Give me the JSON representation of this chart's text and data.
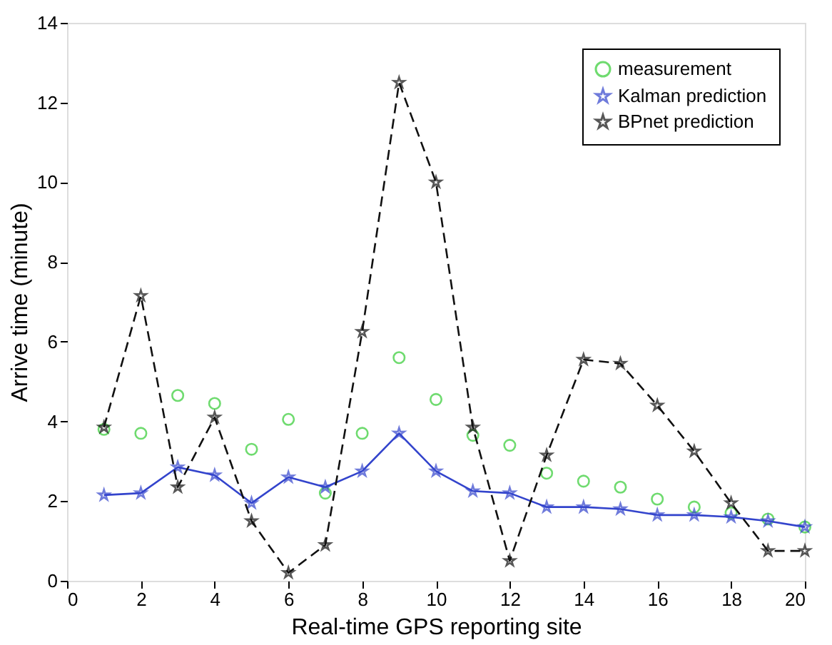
{
  "chart_data": {
    "type": "line",
    "xlabel": "Real-time GPS reporting site",
    "ylabel": "Arrive time (minute)",
    "x": [
      1,
      2,
      3,
      4,
      5,
      6,
      7,
      8,
      9,
      10,
      11,
      12,
      13,
      14,
      15,
      16,
      17,
      18,
      19,
      20
    ],
    "series": [
      {
        "name": "measurement",
        "type": "scatter",
        "color": "#33cc33",
        "marker": "circle",
        "values": [
          3.8,
          3.7,
          4.65,
          4.45,
          3.3,
          4.05,
          2.2,
          3.7,
          5.6,
          4.55,
          3.65,
          3.4,
          2.7,
          2.5,
          2.35,
          2.05,
          1.85,
          1.7,
          1.55,
          1.35
        ]
      },
      {
        "name": "Kalman prediction",
        "color": "#3344cc",
        "marker": "star",
        "line_style": "solid",
        "values": [
          2.15,
          2.2,
          2.85,
          2.65,
          1.95,
          2.6,
          2.35,
          2.75,
          3.7,
          2.75,
          2.25,
          2.2,
          1.85,
          1.85,
          1.8,
          1.65,
          1.65,
          1.6,
          1.5,
          1.35
        ]
      },
      {
        "name": "BPnet prediction",
        "color": "#111111",
        "marker": "star",
        "line_style": "dashed",
        "values": [
          3.85,
          7.15,
          2.35,
          4.1,
          1.5,
          0.2,
          0.9,
          6.25,
          12.5,
          10.0,
          3.85,
          0.5,
          3.15,
          5.55,
          5.45,
          4.4,
          3.25,
          1.95,
          0.75,
          0.75
        ]
      }
    ],
    "xlim": [
      0,
      20
    ],
    "xticks": [
      0,
      2,
      4,
      6,
      8,
      10,
      12,
      14,
      16,
      18,
      20
    ],
    "ylim": [
      0,
      14
    ],
    "yticks": [
      0,
      2,
      4,
      6,
      8,
      10,
      12,
      14
    ],
    "grid": false,
    "legend": "top right"
  }
}
